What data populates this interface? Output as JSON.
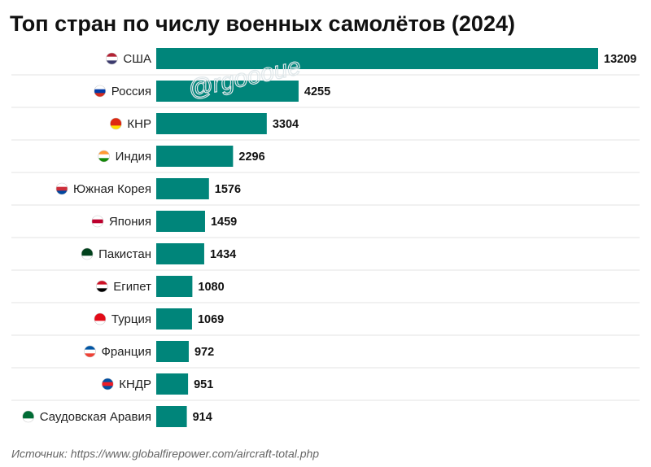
{
  "chart_data": {
    "type": "bar",
    "orientation": "horizontal",
    "title": "Топ стран по числу военных самолётов (2024)",
    "categories": [
      "США",
      "Россия",
      "КНР",
      "Индия",
      "Южная Корея",
      "Япония",
      "Пакистан",
      "Египет",
      "Турция",
      "Франция",
      "КНДР",
      "Саудовская Аравия"
    ],
    "values": [
      13209,
      4255,
      3304,
      2296,
      1576,
      1459,
      1434,
      1080,
      1069,
      972,
      951,
      914
    ],
    "color": "#00857a",
    "source": "Источник: https://www.globalfirepower.com/aircraft-total.php",
    "watermark": "@rgoooue"
  }
}
